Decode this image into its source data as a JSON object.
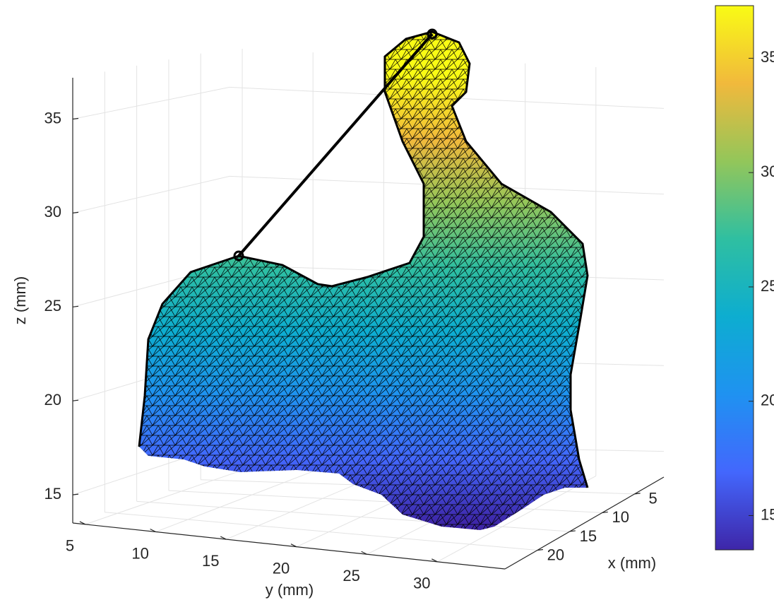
{
  "chart_data": {
    "type": "surface3d",
    "xlabel": "x  (mm)",
    "ylabel": "y  (mm)",
    "zlabel": "z  (mm)",
    "xlim": [
      0.5,
      25
    ],
    "ylim": [
      4.1,
      34.8
    ],
    "zlim": [
      13.5,
      37.2
    ],
    "xticks": [
      5,
      10,
      15,
      20
    ],
    "yticks": [
      5,
      10,
      15,
      20,
      25,
      30
    ],
    "zticks": [
      15,
      20,
      25,
      30,
      35
    ],
    "grid": true,
    "colormap": [
      "#3e26a8",
      "#4367fd",
      "#1f92f1",
      "#0dadd0",
      "#2fbfa1",
      "#93c65a",
      "#f1b93c",
      "#f9fb15"
    ],
    "edge_color": "#000000",
    "colorbar": {
      "clim": [
        13.5,
        37.3
      ],
      "ticks": [
        15,
        20,
        25,
        30,
        35
      ]
    }
  }
}
